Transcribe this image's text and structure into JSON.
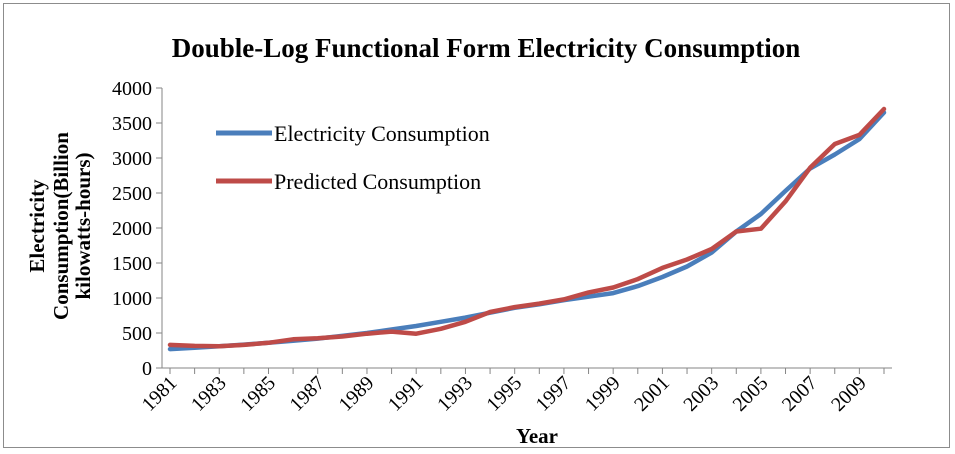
{
  "chart_data": {
    "type": "line",
    "title": "Double-Log Functional Form Electricity Consumption",
    "xlabel": "Year",
    "ylabel_lines": [
      "Electricity",
      "Consumption(Billion",
      "kilowatts-hours)"
    ],
    "ylim": [
      0,
      4000
    ],
    "yticks": [
      0,
      500,
      1000,
      1500,
      2000,
      2500,
      3000,
      3500,
      4000
    ],
    "x": [
      1981,
      1982,
      1983,
      1984,
      1985,
      1986,
      1987,
      1988,
      1989,
      1990,
      1991,
      1992,
      1993,
      1994,
      1995,
      1996,
      1997,
      1998,
      1999,
      2000,
      2001,
      2002,
      2003,
      2004,
      2005,
      2006,
      2007,
      2008,
      2009,
      2010
    ],
    "xtick_labels": [
      "1981",
      "1983",
      "1985",
      "1987",
      "1989",
      "1991",
      "1993",
      "1995",
      "1997",
      "1999",
      "2001",
      "2003",
      "2005",
      "2007",
      "2009"
    ],
    "legend_position": "top-left-inside",
    "grid": false,
    "series": [
      {
        "name": "Electricity Consumption",
        "color": "#4a7ebb",
        "values": [
          270,
          290,
          310,
          335,
          360,
          390,
          420,
          460,
          500,
          550,
          600,
          660,
          720,
          790,
          860,
          910,
          970,
          1020,
          1070,
          1170,
          1300,
          1450,
          1650,
          1950,
          2200,
          2530,
          2850,
          3050,
          3270,
          3650
        ]
      },
      {
        "name": "Predicted Consumption",
        "color": "#be4b48",
        "values": [
          330,
          315,
          310,
          330,
          360,
          410,
          425,
          450,
          490,
          520,
          490,
          560,
          660,
          800,
          870,
          920,
          980,
          1080,
          1150,
          1270,
          1430,
          1550,
          1700,
          1950,
          1990,
          2380,
          2860,
          3200,
          3330,
          3700
        ]
      }
    ]
  }
}
